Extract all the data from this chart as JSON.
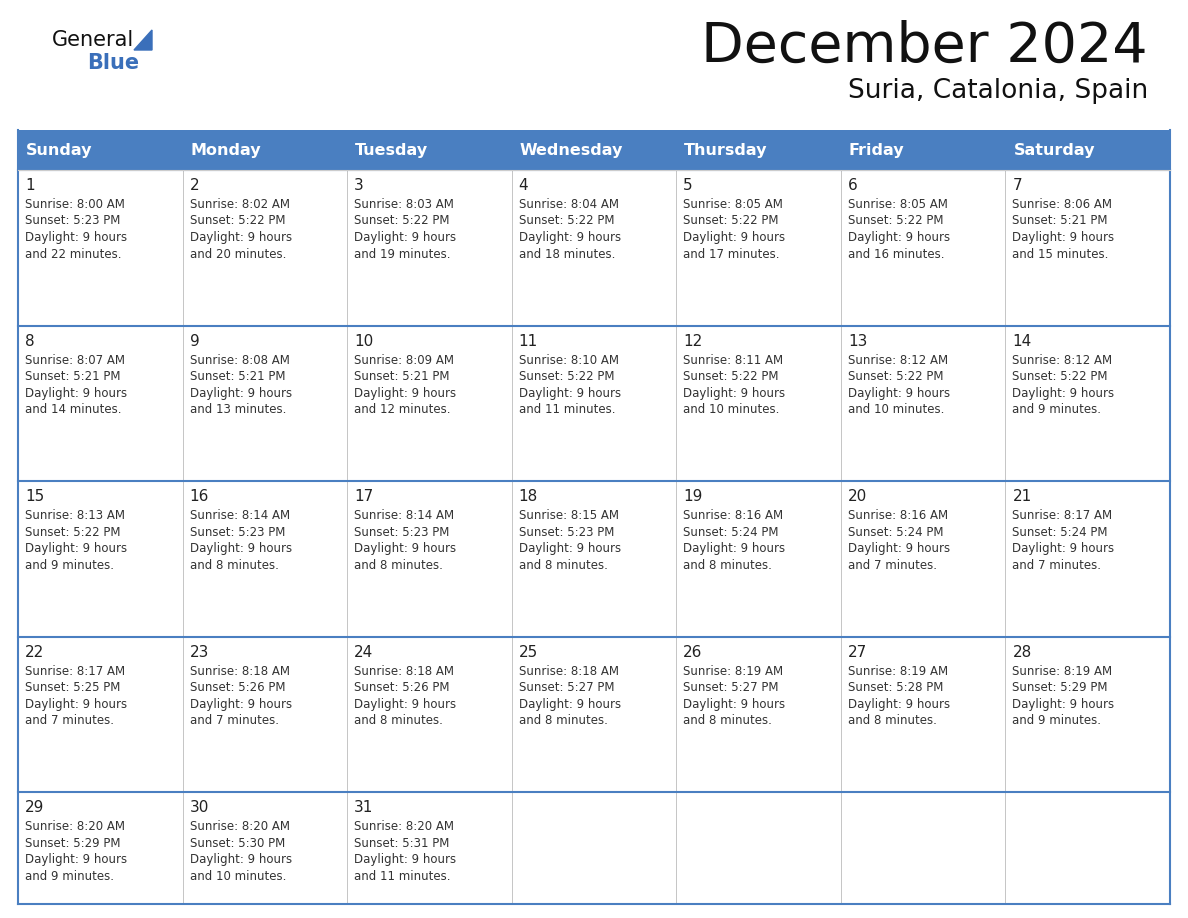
{
  "title": "December 2024",
  "subtitle": "Suria, Catalonia, Spain",
  "days_of_week": [
    "Sunday",
    "Monday",
    "Tuesday",
    "Wednesday",
    "Thursday",
    "Friday",
    "Saturday"
  ],
  "header_bg": "#4a7fc1",
  "header_text": "#FFFFFF",
  "border_color_strong": "#4a7fc1",
  "border_color_light": "#aaaacc",
  "row_sep_color": "#4a7fc1",
  "day_num_color": "#222222",
  "text_color": "#333333",
  "title_color": "#111111",
  "subtitle_color": "#111111",
  "logo_general_color": "#111111",
  "logo_blue_color": "#3a6fba",
  "calendar_data": [
    [
      {
        "day": 1,
        "sunrise": "8:00 AM",
        "sunset": "5:23 PM",
        "daylight_h": "9 hours",
        "daylight_m": "22 minutes"
      },
      {
        "day": 2,
        "sunrise": "8:02 AM",
        "sunset": "5:22 PM",
        "daylight_h": "9 hours",
        "daylight_m": "20 minutes"
      },
      {
        "day": 3,
        "sunrise": "8:03 AM",
        "sunset": "5:22 PM",
        "daylight_h": "9 hours",
        "daylight_m": "19 minutes"
      },
      {
        "day": 4,
        "sunrise": "8:04 AM",
        "sunset": "5:22 PM",
        "daylight_h": "9 hours",
        "daylight_m": "18 minutes"
      },
      {
        "day": 5,
        "sunrise": "8:05 AM",
        "sunset": "5:22 PM",
        "daylight_h": "9 hours",
        "daylight_m": "17 minutes"
      },
      {
        "day": 6,
        "sunrise": "8:05 AM",
        "sunset": "5:22 PM",
        "daylight_h": "9 hours",
        "daylight_m": "16 minutes"
      },
      {
        "day": 7,
        "sunrise": "8:06 AM",
        "sunset": "5:21 PM",
        "daylight_h": "9 hours",
        "daylight_m": "15 minutes"
      }
    ],
    [
      {
        "day": 8,
        "sunrise": "8:07 AM",
        "sunset": "5:21 PM",
        "daylight_h": "9 hours",
        "daylight_m": "14 minutes"
      },
      {
        "day": 9,
        "sunrise": "8:08 AM",
        "sunset": "5:21 PM",
        "daylight_h": "9 hours",
        "daylight_m": "13 minutes"
      },
      {
        "day": 10,
        "sunrise": "8:09 AM",
        "sunset": "5:21 PM",
        "daylight_h": "9 hours",
        "daylight_m": "12 minutes"
      },
      {
        "day": 11,
        "sunrise": "8:10 AM",
        "sunset": "5:22 PM",
        "daylight_h": "9 hours",
        "daylight_m": "11 minutes"
      },
      {
        "day": 12,
        "sunrise": "8:11 AM",
        "sunset": "5:22 PM",
        "daylight_h": "9 hours",
        "daylight_m": "10 minutes"
      },
      {
        "day": 13,
        "sunrise": "8:12 AM",
        "sunset": "5:22 PM",
        "daylight_h": "9 hours",
        "daylight_m": "10 minutes"
      },
      {
        "day": 14,
        "sunrise": "8:12 AM",
        "sunset": "5:22 PM",
        "daylight_h": "9 hours",
        "daylight_m": "9 minutes"
      }
    ],
    [
      {
        "day": 15,
        "sunrise": "8:13 AM",
        "sunset": "5:22 PM",
        "daylight_h": "9 hours",
        "daylight_m": "9 minutes"
      },
      {
        "day": 16,
        "sunrise": "8:14 AM",
        "sunset": "5:23 PM",
        "daylight_h": "9 hours",
        "daylight_m": "8 minutes"
      },
      {
        "day": 17,
        "sunrise": "8:14 AM",
        "sunset": "5:23 PM",
        "daylight_h": "9 hours",
        "daylight_m": "8 minutes"
      },
      {
        "day": 18,
        "sunrise": "8:15 AM",
        "sunset": "5:23 PM",
        "daylight_h": "9 hours",
        "daylight_m": "8 minutes"
      },
      {
        "day": 19,
        "sunrise": "8:16 AM",
        "sunset": "5:24 PM",
        "daylight_h": "9 hours",
        "daylight_m": "8 minutes"
      },
      {
        "day": 20,
        "sunrise": "8:16 AM",
        "sunset": "5:24 PM",
        "daylight_h": "9 hours",
        "daylight_m": "7 minutes"
      },
      {
        "day": 21,
        "sunrise": "8:17 AM",
        "sunset": "5:24 PM",
        "daylight_h": "9 hours",
        "daylight_m": "7 minutes"
      }
    ],
    [
      {
        "day": 22,
        "sunrise": "8:17 AM",
        "sunset": "5:25 PM",
        "daylight_h": "9 hours",
        "daylight_m": "7 minutes"
      },
      {
        "day": 23,
        "sunrise": "8:18 AM",
        "sunset": "5:26 PM",
        "daylight_h": "9 hours",
        "daylight_m": "7 minutes"
      },
      {
        "day": 24,
        "sunrise": "8:18 AM",
        "sunset": "5:26 PM",
        "daylight_h": "9 hours",
        "daylight_m": "8 minutes"
      },
      {
        "day": 25,
        "sunrise": "8:18 AM",
        "sunset": "5:27 PM",
        "daylight_h": "9 hours",
        "daylight_m": "8 minutes"
      },
      {
        "day": 26,
        "sunrise": "8:19 AM",
        "sunset": "5:27 PM",
        "daylight_h": "9 hours",
        "daylight_m": "8 minutes"
      },
      {
        "day": 27,
        "sunrise": "8:19 AM",
        "sunset": "5:28 PM",
        "daylight_h": "9 hours",
        "daylight_m": "8 minutes"
      },
      {
        "day": 28,
        "sunrise": "8:19 AM",
        "sunset": "5:29 PM",
        "daylight_h": "9 hours",
        "daylight_m": "9 minutes"
      }
    ],
    [
      {
        "day": 29,
        "sunrise": "8:20 AM",
        "sunset": "5:29 PM",
        "daylight_h": "9 hours",
        "daylight_m": "9 minutes"
      },
      {
        "day": 30,
        "sunrise": "8:20 AM",
        "sunset": "5:30 PM",
        "daylight_h": "9 hours",
        "daylight_m": "10 minutes"
      },
      {
        "day": 31,
        "sunrise": "8:20 AM",
        "sunset": "5:31 PM",
        "daylight_h": "9 hours",
        "daylight_m": "11 minutes"
      },
      null,
      null,
      null,
      null
    ]
  ]
}
